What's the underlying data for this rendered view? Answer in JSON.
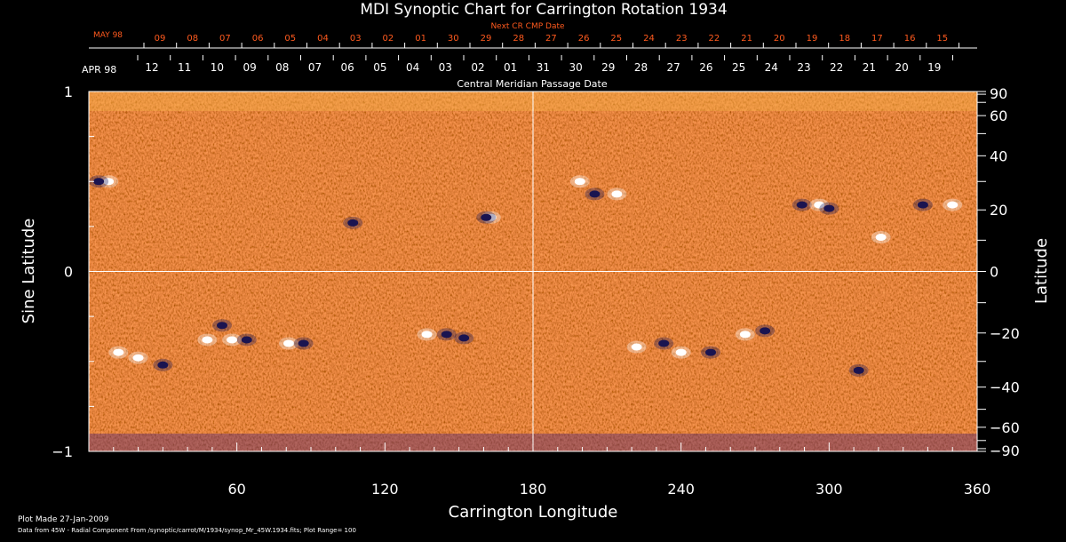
{
  "chart_data": {
    "type": "heatmap",
    "title": "MDI Synoptic Chart for Carrington Rotation 1934",
    "xlabel": "Carrington Longitude",
    "ylabel_left": "Sine Latitude",
    "ylabel_right": "Latitude",
    "xlim": [
      0,
      360
    ],
    "ylim_sine": [
      -1,
      1
    ],
    "x_ticks": [
      "60",
      "120",
      "180",
      "240",
      "300",
      "360"
    ],
    "x_tick_values": [
      60,
      120,
      180,
      240,
      300,
      360
    ],
    "y_left_ticks": [
      "1",
      "0",
      "−1"
    ],
    "y_left_tick_values": [
      1,
      0,
      -1
    ],
    "y_right_ticks": [
      "90",
      "60",
      "40",
      "20",
      "0",
      "−20",
      "−40",
      "−60",
      "−90"
    ],
    "y_right_tick_values": [
      90,
      60,
      40,
      20,
      0,
      -20,
      -40,
      -60,
      -90
    ],
    "top_axis_1_title": "Next CR CMP Date",
    "top_axis_1_month": "MAY 98",
    "top_axis_1_days": [
      "09",
      "08",
      "07",
      "06",
      "05",
      "04",
      "03",
      "02",
      "01",
      "30",
      "29",
      "28",
      "27",
      "26",
      "25",
      "24",
      "23",
      "22",
      "21",
      "20",
      "19",
      "18",
      "17",
      "16",
      "15"
    ],
    "top_axis_2_title": "Central Meridian Passage Date",
    "top_axis_2_month": "APR 98",
    "top_axis_2_days": [
      "12",
      "11",
      "10",
      "09",
      "08",
      "07",
      "06",
      "05",
      "04",
      "03",
      "02",
      "01",
      "31",
      "30",
      "29",
      "28",
      "27",
      "26",
      "25",
      "24",
      "23",
      "22",
      "21",
      "20",
      "19"
    ],
    "colors": {
      "field_base": "#e8521a",
      "positive": "#ffffff",
      "negative": "#1a1450",
      "axis": "#ffffff",
      "top_axis_1": "#ff5a1e"
    },
    "active_regions": [
      {
        "lon": 8,
        "sinlat": 0.5,
        "pol": 1
      },
      {
        "lon": 4,
        "sinlat": 0.5,
        "pol": -1
      },
      {
        "lon": 163,
        "sinlat": 0.3,
        "pol": 1
      },
      {
        "lon": 161,
        "sinlat": 0.3,
        "pol": -1
      },
      {
        "lon": 107,
        "sinlat": 0.27,
        "pol": -1
      },
      {
        "lon": 20,
        "sinlat": -0.48,
        "pol": 1
      },
      {
        "lon": 12,
        "sinlat": -0.45,
        "pol": 1
      },
      {
        "lon": 30,
        "sinlat": -0.52,
        "pol": -1
      },
      {
        "lon": 48,
        "sinlat": -0.38,
        "pol": 1
      },
      {
        "lon": 54,
        "sinlat": -0.3,
        "pol": -1
      },
      {
        "lon": 58,
        "sinlat": -0.38,
        "pol": 1
      },
      {
        "lon": 64,
        "sinlat": -0.38,
        "pol": -1
      },
      {
        "lon": 81,
        "sinlat": -0.4,
        "pol": 1
      },
      {
        "lon": 87,
        "sinlat": -0.4,
        "pol": -1
      },
      {
        "lon": 137,
        "sinlat": -0.35,
        "pol": 1
      },
      {
        "lon": 145,
        "sinlat": -0.35,
        "pol": -1
      },
      {
        "lon": 152,
        "sinlat": -0.37,
        "pol": -1
      },
      {
        "lon": 199,
        "sinlat": 0.5,
        "pol": 1
      },
      {
        "lon": 205,
        "sinlat": 0.43,
        "pol": -1
      },
      {
        "lon": 214,
        "sinlat": 0.43,
        "pol": 1
      },
      {
        "lon": 289,
        "sinlat": 0.37,
        "pol": -1
      },
      {
        "lon": 296,
        "sinlat": 0.37,
        "pol": 1
      },
      {
        "lon": 300,
        "sinlat": 0.35,
        "pol": -1
      },
      {
        "lon": 321,
        "sinlat": 0.19,
        "pol": 1
      },
      {
        "lon": 338,
        "sinlat": 0.37,
        "pol": -1
      },
      {
        "lon": 350,
        "sinlat": 0.37,
        "pol": 1
      },
      {
        "lon": 222,
        "sinlat": -0.42,
        "pol": 1
      },
      {
        "lon": 233,
        "sinlat": -0.4,
        "pol": -1
      },
      {
        "lon": 240,
        "sinlat": -0.45,
        "pol": 1
      },
      {
        "lon": 252,
        "sinlat": -0.45,
        "pol": -1
      },
      {
        "lon": 266,
        "sinlat": -0.35,
        "pol": 1
      },
      {
        "lon": 274,
        "sinlat": -0.33,
        "pol": -1
      },
      {
        "lon": 312,
        "sinlat": -0.55,
        "pol": -1
      }
    ]
  },
  "footer": {
    "plot_made": "Plot Made 27-Jan-2009",
    "data_source": "Data from 45W - Radial Component From /synoptic/carrot/M/1934/synop_Mr_45W.1934.fits; Plot Range=  100"
  }
}
